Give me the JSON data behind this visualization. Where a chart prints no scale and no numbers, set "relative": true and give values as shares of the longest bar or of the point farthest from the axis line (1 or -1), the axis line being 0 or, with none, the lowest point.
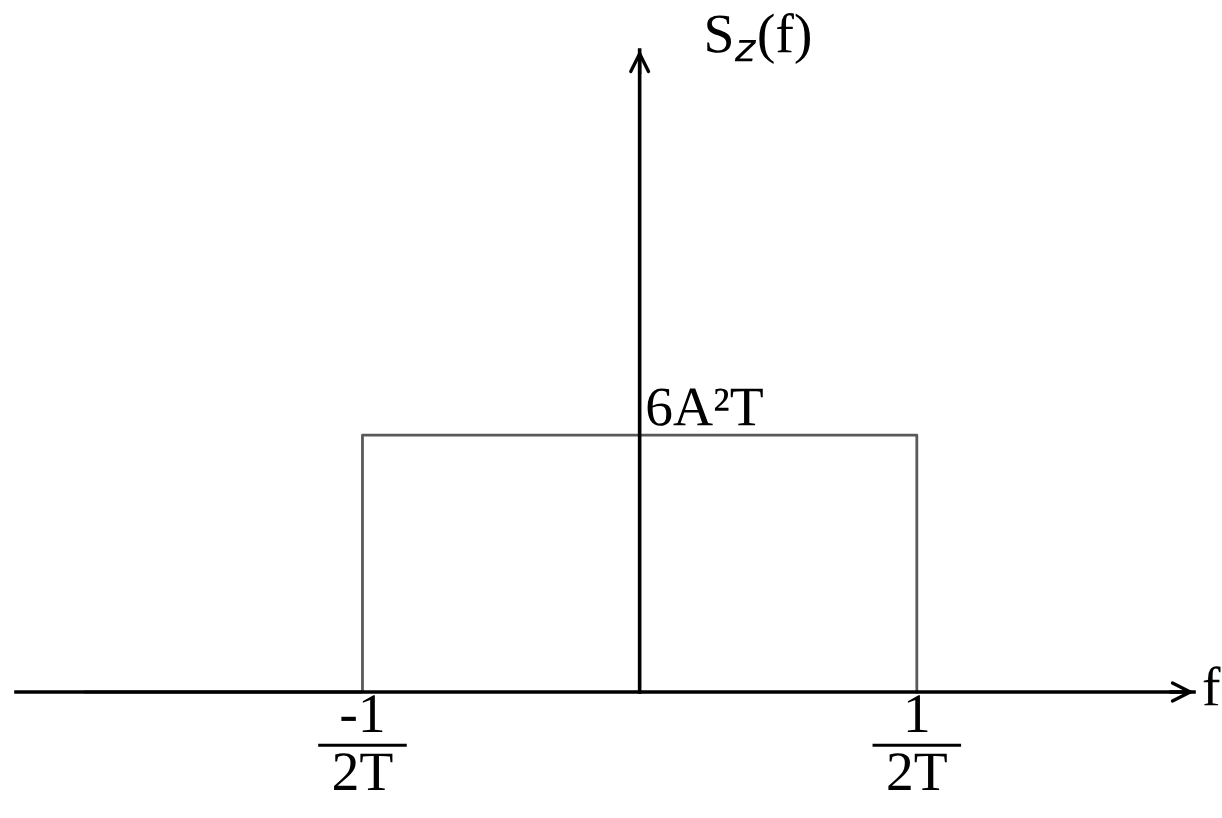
{
  "chart_data": {
    "type": "step",
    "relative": true,
    "xlabel": "f",
    "categories": [
      null,
      "-1\n2T",
      null,
      "1\n2T"
    ],
    "values": [
      0,
      1,
      1,
      0
    ],
    "color": "#595959",
    "annotations": [
      "S$_{z}$(f)",
      {
        "text": "6A²T",
        "y": 1
      }
    ]
  }
}
